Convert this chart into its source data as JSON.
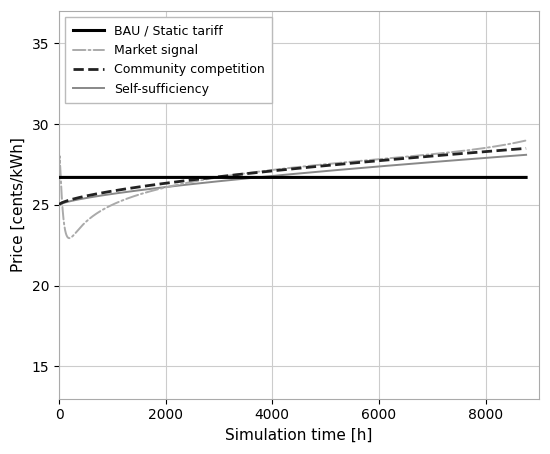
{
  "title": "",
  "xlabel": "Simulation time [h]",
  "ylabel": "Price [cents/kWh]",
  "xlim": [
    0,
    9000
  ],
  "ylim": [
    13,
    37
  ],
  "yticks": [
    15,
    20,
    25,
    30,
    35
  ],
  "xticks": [
    0,
    2000,
    4000,
    6000,
    8000
  ],
  "bau_value": 26.7,
  "bau_label": "BAU / Static tariff",
  "market_label": "Market signal",
  "community_label": "Community competition",
  "selfsuff_label": "Self-sufficiency",
  "background_color": "#ffffff",
  "grid_color": "#cccccc",
  "line_color_bau": "#000000",
  "line_color_market": "#aaaaaa",
  "line_color_community": "#222222",
  "line_color_selfsuff": "#888888"
}
